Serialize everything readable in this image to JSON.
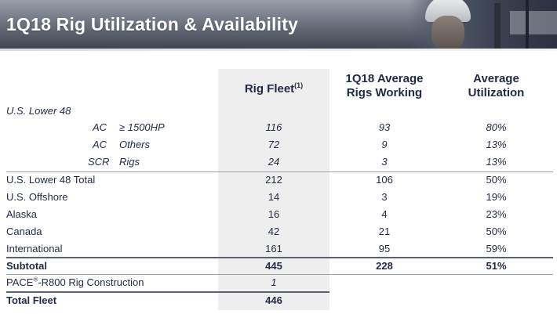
{
  "title": "1Q18 Rig Utilization & Availability",
  "columns": {
    "fleet": "Rig Fleet",
    "fleet_footnote": "(1)",
    "avg_line1": "1Q18 Average",
    "avg_line2": "Rigs Working",
    "util_line1": "Average",
    "util_line2": "Utilization"
  },
  "section_label": "U.S. Lower 48",
  "sub_rows": [
    {
      "type": "AC",
      "desc": "≥ 1500HP",
      "fleet": "116",
      "avg": "93",
      "util": "80%"
    },
    {
      "type": "AC",
      "desc": "Others",
      "fleet": "72",
      "avg": "9",
      "util": "13%"
    },
    {
      "type": "SCR",
      "desc": "Rigs",
      "fleet": "24",
      "avg": "3",
      "util": "13%"
    }
  ],
  "rows": [
    {
      "label": "U.S. Lower 48 Total",
      "fleet": "212",
      "avg": "106",
      "util": "50%"
    },
    {
      "label": "U.S. Offshore",
      "fleet": "14",
      "avg": "3",
      "util": "19%"
    },
    {
      "label": "Alaska",
      "fleet": "16",
      "avg": "4",
      "util": "23%"
    },
    {
      "label": "Canada",
      "fleet": "42",
      "avg": "21",
      "util": "50%"
    },
    {
      "label": "International",
      "fleet": "161",
      "avg": "95",
      "util": "59%"
    }
  ],
  "subtotal": {
    "label": "Subtotal",
    "fleet": "445",
    "avg": "228",
    "util": "51%"
  },
  "construction": {
    "label_pre": "PACE",
    "label_mark": "®",
    "label_post": "-R800 Rig Construction",
    "fleet": "1"
  },
  "total": {
    "label": "Total Fleet",
    "fleet": "446"
  }
}
